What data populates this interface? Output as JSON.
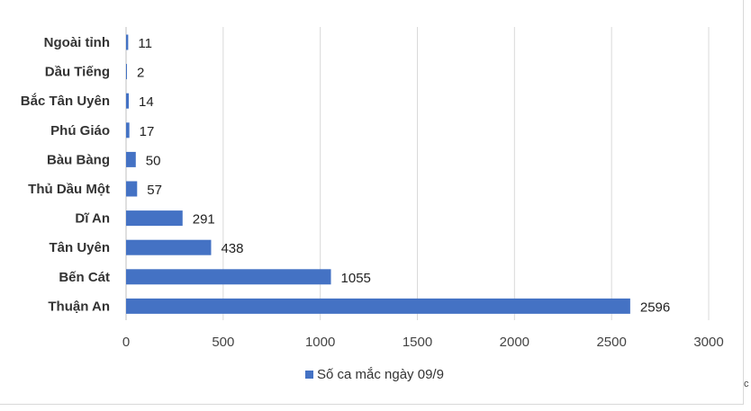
{
  "chart_data": {
    "type": "bar",
    "orientation": "horizontal",
    "categories": [
      "Ngoài tỉnh",
      "Dầu Tiếng",
      "Bắc Tân Uyên",
      "Phú Giáo",
      "Bàu Bàng",
      "Thủ Dầu Một",
      "Dĩ An",
      "Tân Uyên",
      "Bến Cát",
      "Thuận An"
    ],
    "series": [
      {
        "name": "Số ca mắc ngày 09/9",
        "values": [
          11,
          2,
          14,
          17,
          50,
          57,
          291,
          438,
          1055,
          2596
        ],
        "color": "#4472c4"
      }
    ],
    "xlim": [
      0,
      3000
    ],
    "ticks": [
      0,
      500,
      1000,
      1500,
      2000,
      2500,
      3000
    ],
    "grid": "vertical",
    "legend": "bottom",
    "title": "",
    "xlabel": "",
    "ylabel": ""
  },
  "corner_glyph": "c"
}
